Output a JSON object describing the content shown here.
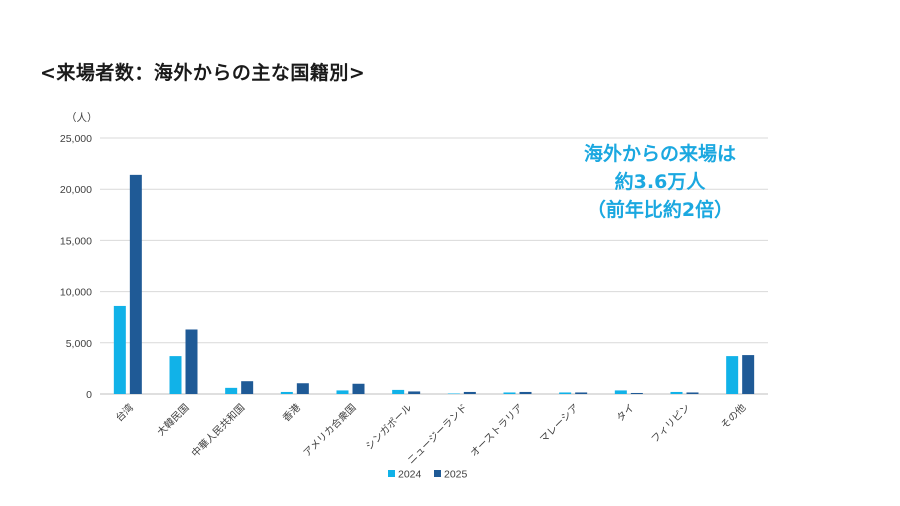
{
  "title": "<来場者数：海外からの主な国籍別>",
  "annotation": [
    "海外からの来場は",
    "約3.6万人",
    "（前年比約2倍）"
  ],
  "colors": {
    "2024": "#11b2e8",
    "2025": "#1f5a96",
    "annotation": "#1ba8e0",
    "grid": "#d9d9d9"
  },
  "chart_data": {
    "type": "bar",
    "unit_label": "（人）",
    "categories": [
      "台湾",
      "大韓民国",
      "中華人民共和国",
      "香港",
      "アメリカ合衆国",
      "シンガポール",
      "ニュージーランド",
      "オーストラリア",
      "マレーシア",
      "タイ",
      "フィリピン",
      "その他"
    ],
    "series": [
      {
        "name": "2024",
        "values": [
          8600,
          3700,
          600,
          200,
          350,
          400,
          50,
          150,
          150,
          350,
          200,
          3700
        ]
      },
      {
        "name": "2025",
        "values": [
          21400,
          6300,
          1250,
          1050,
          1000,
          250,
          200,
          200,
          150,
          100,
          150,
          3800
        ]
      }
    ],
    "ylim": [
      0,
      25000
    ],
    "yticks": [
      "0",
      "5,000",
      "10,000",
      "15,000",
      "20,000",
      "25,000"
    ],
    "grid": true,
    "legend_position": "bottom"
  }
}
